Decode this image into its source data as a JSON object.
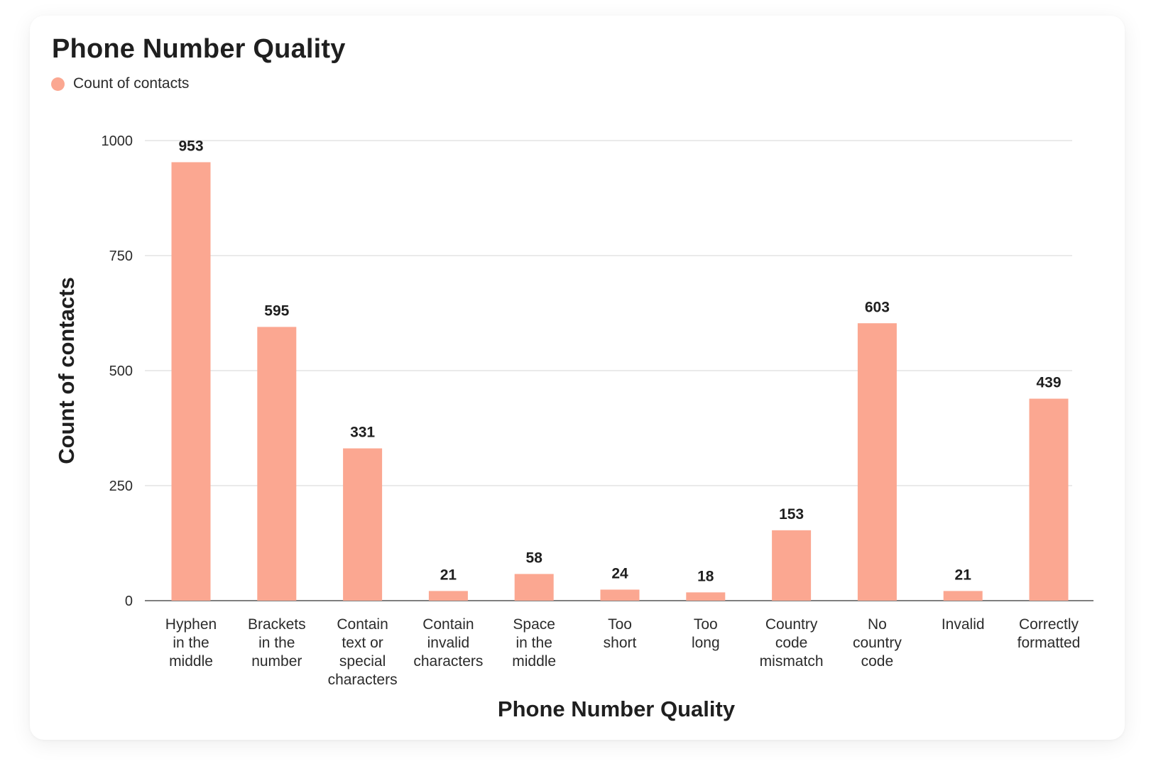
{
  "chart_data": {
    "type": "bar",
    "title": "Phone Number Quality",
    "xlabel": "Phone Number Quality",
    "ylabel": "Count of contacts",
    "ylim": [
      0,
      1000
    ],
    "yticks": [
      0,
      250,
      500,
      750,
      1000
    ],
    "grid": true,
    "legend_position": "top-left",
    "categories": [
      [
        "Hyphen",
        "in the",
        "middle"
      ],
      [
        "Brackets",
        "in the",
        "number"
      ],
      [
        "Contain",
        "text or",
        "special",
        "characters"
      ],
      [
        "Contain",
        "invalid",
        "characters"
      ],
      [
        "Space",
        "in the",
        "middle"
      ],
      [
        "Too",
        "short"
      ],
      [
        "Too",
        "long"
      ],
      [
        "Country",
        "code",
        "mismatch"
      ],
      [
        "No",
        "country",
        "code"
      ],
      [
        "Invalid"
      ],
      [
        "Correctly",
        "formatted"
      ]
    ],
    "series": [
      {
        "name": "Count of contacts",
        "color": "#FBA791",
        "values": [
          953,
          595,
          331,
          21,
          58,
          24,
          18,
          153,
          603,
          21,
          439
        ]
      }
    ]
  }
}
